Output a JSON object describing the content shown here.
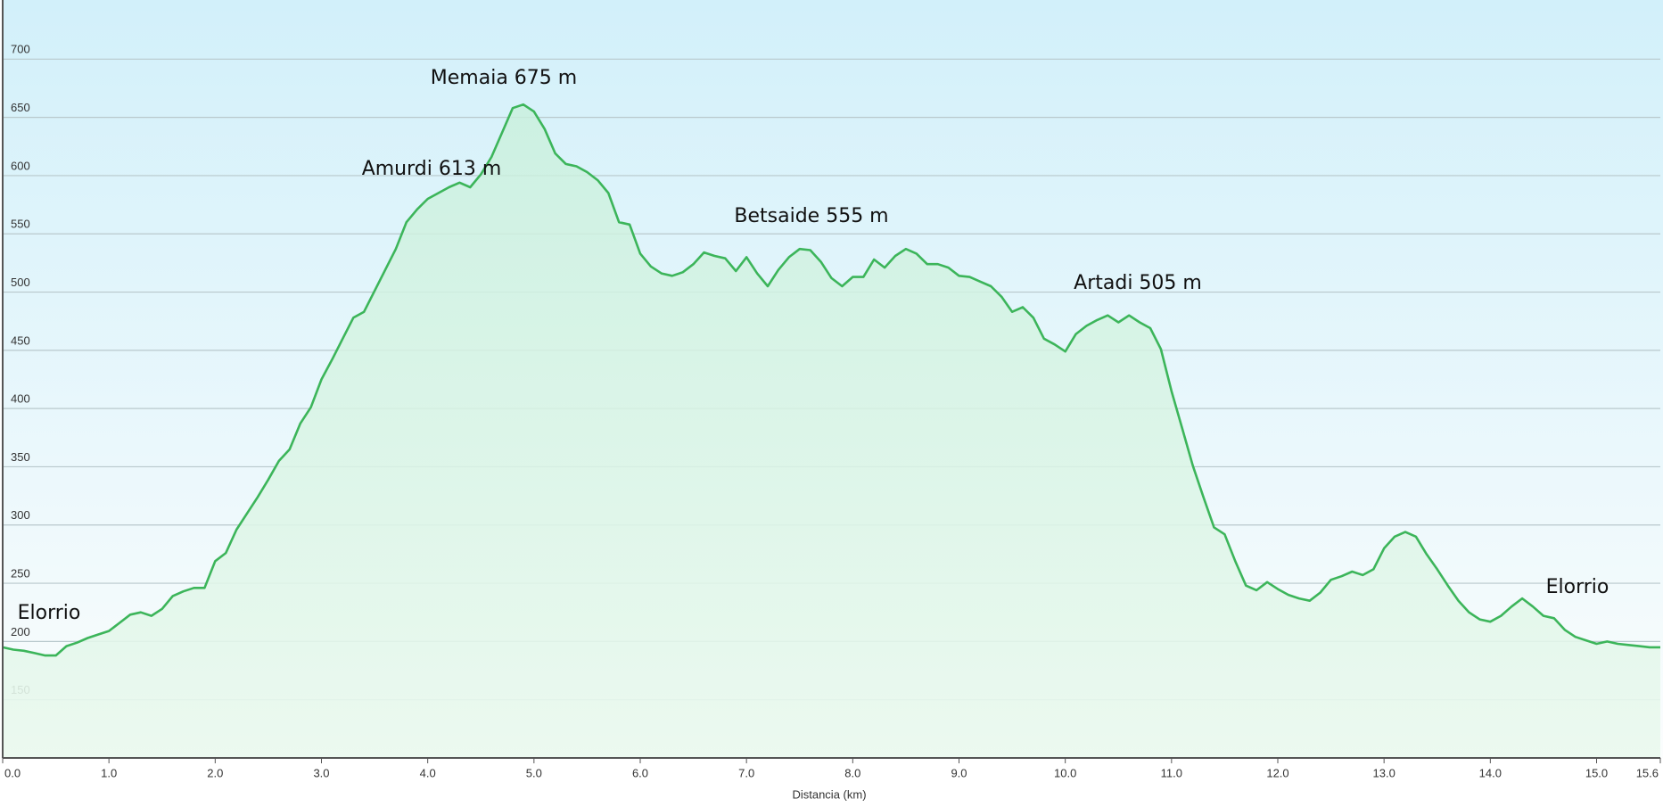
{
  "chart_data": {
    "type": "area",
    "x_label": "Distancia  (km)",
    "color": "#3cb55a",
    "grid": true,
    "x": [
      0,
      0.1,
      0.2,
      0.3,
      0.4,
      0.5,
      0.6,
      0.7,
      0.8,
      0.9,
      1,
      1.1,
      1.2,
      1.3,
      1.4,
      1.5,
      1.6,
      1.7,
      1.8,
      1.9,
      2,
      2.1,
      2.2,
      2.3,
      2.4,
      2.5,
      2.6,
      2.7,
      2.8,
      2.9,
      3,
      3.1,
      3.2,
      3.3,
      3.4,
      3.5,
      3.6,
      3.7,
      3.8,
      3.9,
      4,
      4.1,
      4.2,
      4.3,
      4.4,
      4.5,
      4.6,
      4.7,
      4.8,
      4.9,
      5,
      5.1,
      5.2,
      5.3,
      5.4,
      5.5,
      5.6,
      5.7,
      5.8,
      5.9,
      6,
      6.1,
      6.2,
      6.3,
      6.4,
      6.5,
      6.6,
      6.7,
      6.8,
      6.9,
      7,
      7.1,
      7.2,
      7.3,
      7.4,
      7.5,
      7.6,
      7.7,
      7.8,
      7.9,
      8,
      8.1,
      8.2,
      8.3,
      8.4,
      8.5,
      8.6,
      8.7,
      8.8,
      8.9,
      9,
      9.1,
      9.2,
      9.3,
      9.4,
      9.5,
      9.6,
      9.7,
      9.8,
      9.9,
      10,
      10.1,
      10.2,
      10.3,
      10.4,
      10.5,
      10.6,
      10.7,
      10.8,
      10.9,
      11,
      11.1,
      11.2,
      11.3,
      11.4,
      11.5,
      11.6,
      11.7,
      11.8,
      11.9,
      12,
      12.1,
      12.2,
      12.3,
      12.4,
      12.5,
      12.6,
      12.7,
      12.8,
      12.9,
      13,
      13.1,
      13.2,
      13.3,
      13.4,
      13.5,
      13.6,
      13.7,
      13.8,
      13.9,
      14,
      14.1,
      14.2,
      14.3,
      14.4,
      14.5,
      14.6,
      14.7,
      14.8,
      14.9,
      15,
      15.1,
      15.2,
      15.3,
      15.4,
      15.5,
      15.6
    ],
    "values": [
      195,
      193,
      192,
      190,
      188,
      188,
      196,
      199,
      203,
      206,
      209,
      216,
      223,
      225,
      222,
      228,
      239,
      243,
      246,
      246,
      269,
      276,
      296,
      310,
      324,
      339,
      355,
      365,
      387,
      401,
      425,
      442,
      460,
      478,
      483,
      501,
      519,
      537,
      560,
      571,
      580,
      585,
      590,
      594,
      590,
      601,
      616,
      637,
      658,
      661,
      655,
      640,
      619,
      610,
      608,
      603,
      596,
      585,
      560,
      558,
      533,
      522,
      516,
      514,
      517,
      524,
      534,
      531,
      529,
      518,
      530,
      516,
      505,
      519,
      530,
      537,
      536,
      526,
      512,
      505,
      513,
      513,
      528,
      521,
      531,
      537,
      533,
      524,
      524,
      521,
      514,
      513,
      509,
      505,
      496,
      483,
      487,
      478,
      460,
      455,
      449,
      464,
      471,
      476,
      480,
      474,
      480,
      474,
      469,
      451,
      415,
      383,
      351,
      324,
      298,
      292,
      269,
      248,
      244,
      251,
      245,
      240,
      237,
      235,
      242,
      253,
      256,
      260,
      257,
      262,
      280,
      290,
      294,
      290,
      275,
      262,
      248,
      235,
      225,
      219,
      217,
      222,
      230,
      237,
      230,
      222,
      220,
      210,
      204,
      201,
      198,
      200,
      198,
      197,
      196,
      195,
      195
    ],
    "xlim": [
      0,
      15.6
    ],
    "ylim": [
      100,
      750
    ],
    "xticks": [
      {
        "value": 0,
        "label": "0.0"
      },
      {
        "value": 1,
        "label": "1.0"
      },
      {
        "value": 2,
        "label": "2.0"
      },
      {
        "value": 3,
        "label": "3.0"
      },
      {
        "value": 4,
        "label": "4.0"
      },
      {
        "value": 5,
        "label": "5.0"
      },
      {
        "value": 6,
        "label": "6.0"
      },
      {
        "value": 7,
        "label": "7.0"
      },
      {
        "value": 8,
        "label": "8.0"
      },
      {
        "value": 9,
        "label": "9.0"
      },
      {
        "value": 10,
        "label": "10.0"
      },
      {
        "value": 11,
        "label": "11.0"
      },
      {
        "value": 12,
        "label": "12.0"
      },
      {
        "value": 13,
        "label": "13.0"
      },
      {
        "value": 14,
        "label": "14.0"
      },
      {
        "value": 15,
        "label": "15.0"
      },
      {
        "value": 15.6,
        "label": "15.6"
      }
    ],
    "yticks": [
      150,
      200,
      250,
      300,
      350,
      400,
      450,
      500,
      550,
      600,
      650,
      700
    ],
    "annotations": [
      "Elorrio",
      "Amurdi 613 m",
      "Memaia 675 m",
      "Betsaide 555 m",
      "Artadi 505 m",
      "Elorrio"
    ]
  }
}
